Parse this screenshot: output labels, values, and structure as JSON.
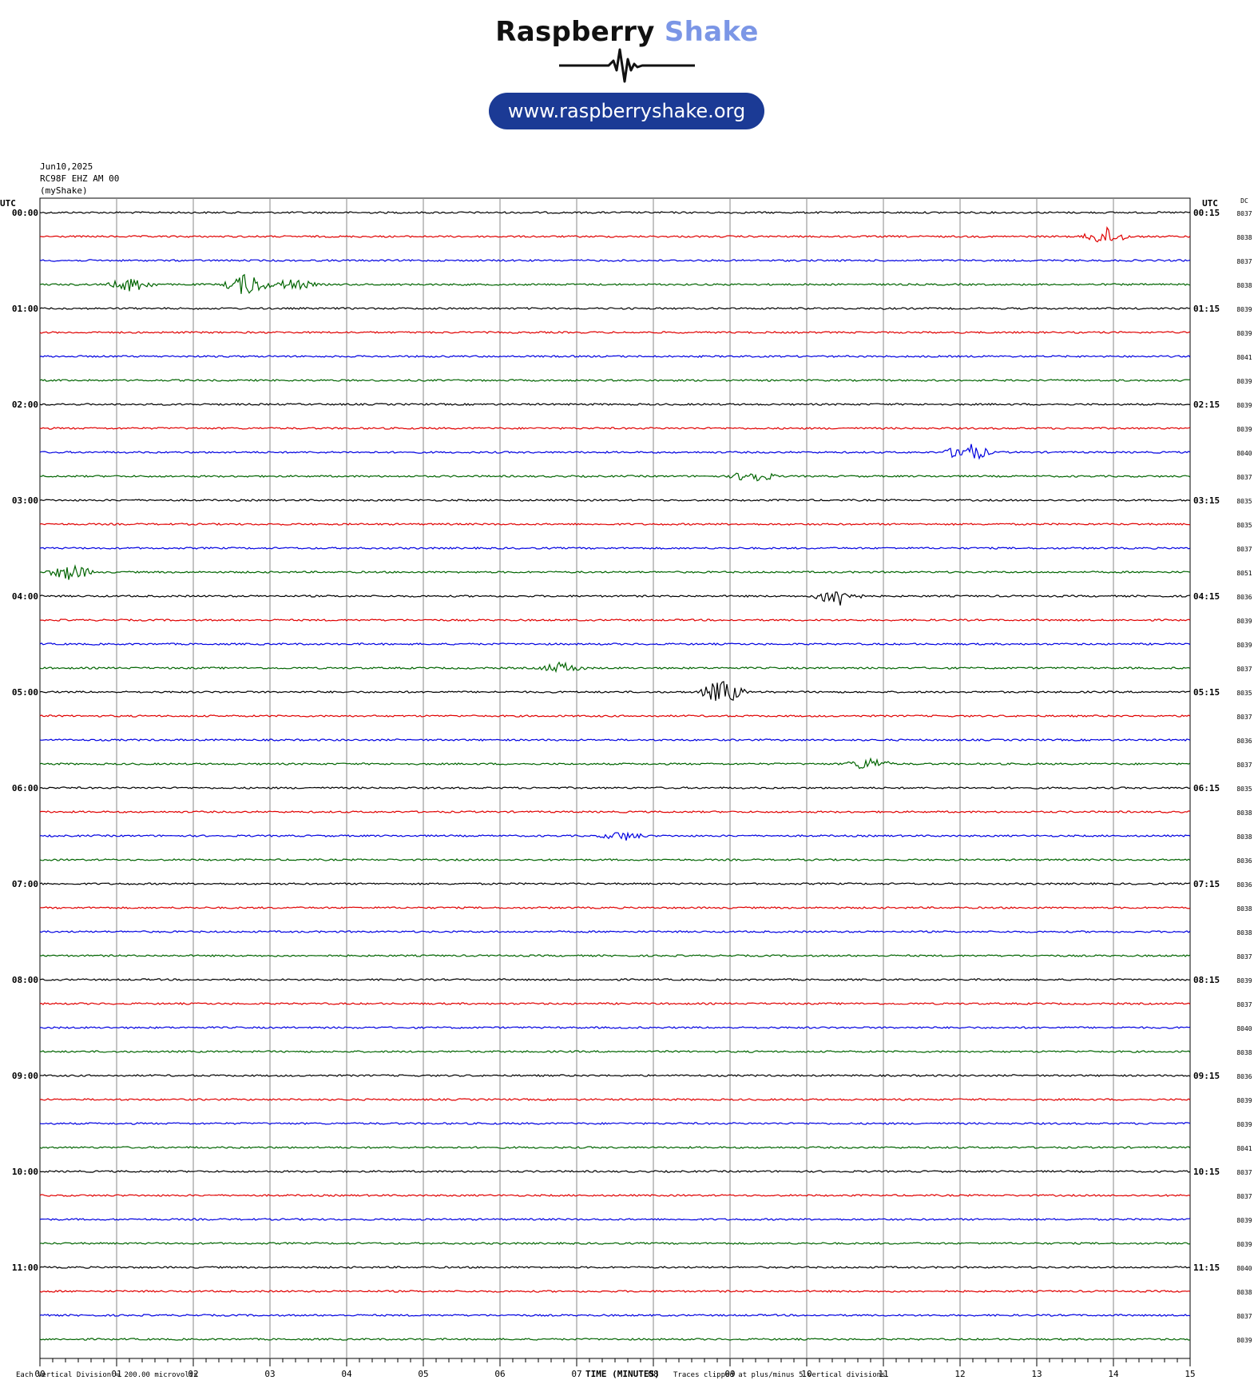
{
  "brand": {
    "name_part1": "Raspberry",
    "name_part2": "Shake",
    "url": "www.raspberryshake.org",
    "colors": {
      "dark": "#111111",
      "accent": "#7b96e6",
      "pill": "#1b3a95"
    }
  },
  "header": {
    "date": "Jun10,2025",
    "station": "RC98F EHZ AM 00",
    "network": "(myShake)"
  },
  "chart_data": {
    "type": "line",
    "kind": "helicorder",
    "left_axis_label": "UTC",
    "right_axis_label": "UTC",
    "dc_label": "DC",
    "left_hour_labels": [
      "00:00",
      "01:00",
      "02:00",
      "03:00",
      "04:00",
      "05:00",
      "06:00",
      "07:00",
      "08:00",
      "09:00",
      "10:00",
      "11:00"
    ],
    "right_hour_labels": [
      "00:15",
      "01:15",
      "02:15",
      "03:15",
      "04:15",
      "05:15",
      "06:15",
      "07:15",
      "08:15",
      "09:15",
      "10:15",
      "11:15"
    ],
    "trace_colors": [
      "#000000",
      "#e00000",
      "#0000e0",
      "#006400"
    ],
    "dc_values": [
      "8037",
      "8038",
      "8037",
      "8038",
      "8039",
      "8039",
      "8041",
      "8039",
      "8039",
      "8039",
      "8040",
      "8037",
      "8035",
      "8035",
      "8037",
      "8051",
      "8036",
      "8039",
      "8039",
      "8037",
      "8035",
      "8037",
      "8036",
      "8037",
      "8035",
      "8038",
      "8038",
      "8036",
      "8036",
      "8038",
      "8038",
      "8037",
      "8039",
      "8037",
      "8040",
      "8038",
      "8036",
      "8039",
      "8039",
      "8041",
      "8037",
      "8037",
      "8039",
      "8039",
      "8040",
      "8038",
      "8037",
      "8039"
    ],
    "x_ticks": [
      "00",
      "01",
      "02",
      "03",
      "04",
      "05",
      "06",
      "07",
      "08",
      "09",
      "10",
      "11",
      "12",
      "13",
      "14",
      "15"
    ],
    "x_range": [
      0,
      15
    ],
    "x_unit": "minutes",
    "rows": 48,
    "grid": true,
    "events": [
      {
        "row": 1,
        "minute": 13.9,
        "amp": 1.0
      },
      {
        "row": 3,
        "minute": 1.2,
        "amp": 0.8
      },
      {
        "row": 3,
        "minute": 2.7,
        "amp": 1.3
      },
      {
        "row": 3,
        "minute": 3.3,
        "amp": 0.6
      },
      {
        "row": 10,
        "minute": 12.1,
        "amp": 1.1
      },
      {
        "row": 11,
        "minute": 9.3,
        "amp": 0.7
      },
      {
        "row": 15,
        "minute": 0.4,
        "amp": 0.9
      },
      {
        "row": 16,
        "minute": 10.4,
        "amp": 1.2
      },
      {
        "row": 19,
        "minute": 6.8,
        "amp": 0.6
      },
      {
        "row": 20,
        "minute": 8.9,
        "amp": 1.4
      },
      {
        "row": 23,
        "minute": 10.8,
        "amp": 0.7
      },
      {
        "row": 26,
        "minute": 7.6,
        "amp": 0.5
      }
    ],
    "footer_left": "Each Vertical Division =  200.00 microvolts",
    "xlabel": "TIME (MINUTES)",
    "footer_right": "Traces clipped at plus/minus 5 vertical divisions"
  }
}
